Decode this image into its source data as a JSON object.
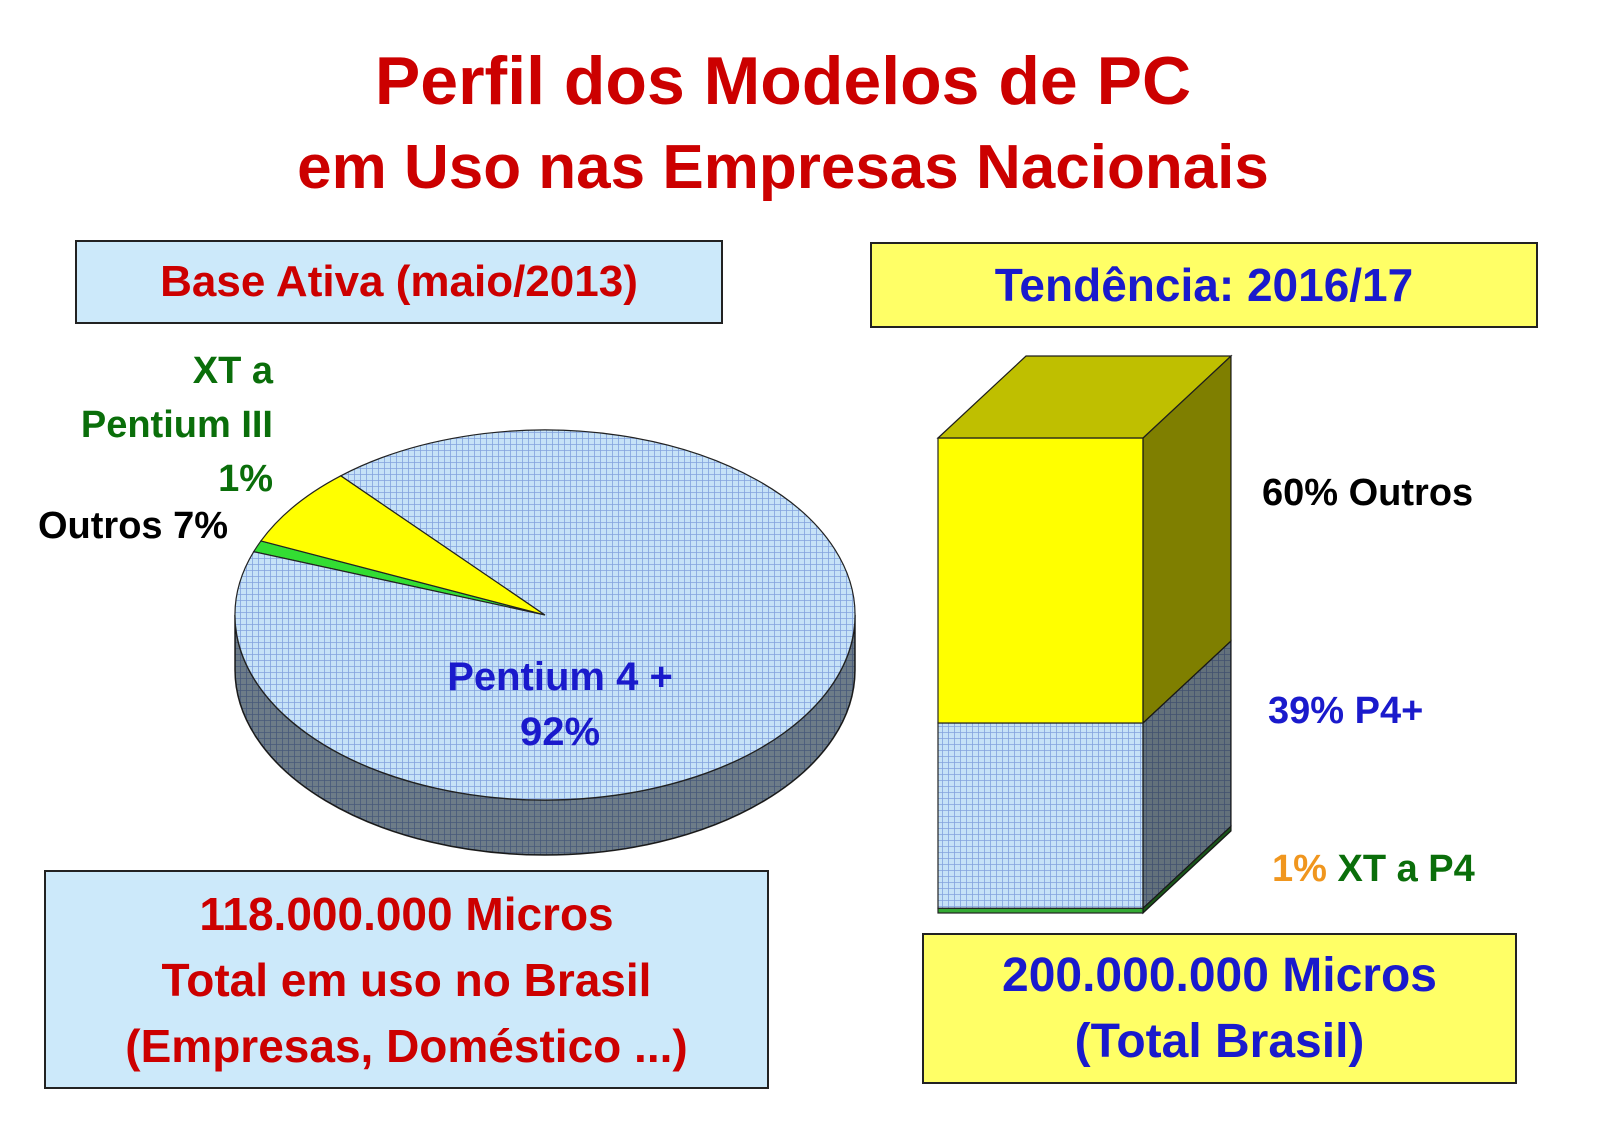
{
  "title": [
    "Perfil dos Modelos de PC",
    "em Uso nas Empresas Nacionais"
  ],
  "left_panel": {
    "heading": "Base Ativa (maio/2013)",
    "footer": [
      "118.000.000 Micros",
      "Total em uso no Brasil",
      "(Empresas, Doméstico ...)"
    ]
  },
  "right_panel": {
    "heading": "Tendência: 2016/17",
    "footer": [
      "200.000.000 Micros",
      "(Total Brasil)"
    ]
  },
  "chart_data": [
    {
      "type": "pie",
      "categories": [
        "XT a Pentium III",
        "Outros",
        "Pentium 4 +"
      ],
      "values": [
        1,
        7,
        92
      ],
      "value_labels": [
        "1%",
        "7%",
        "92%"
      ],
      "colors": [
        "#33dd33",
        "#ffff00",
        "#c6e2f7"
      ]
    },
    {
      "type": "bar",
      "stacked": true,
      "categories": [
        null
      ],
      "ylim": [
        0,
        100
      ],
      "series": [
        {
          "name": "XT a P4",
          "color": "#33aa33",
          "values": [
            1
          ],
          "value_labels": [
            "1%"
          ]
        },
        {
          "name": "P4+",
          "color": "#c6e2f7",
          "values": [
            39
          ],
          "value_labels": [
            "39%"
          ]
        },
        {
          "name": "Outros",
          "color": "#ffff00",
          "values": [
            60
          ],
          "value_labels": [
            "60%"
          ]
        }
      ]
    }
  ]
}
